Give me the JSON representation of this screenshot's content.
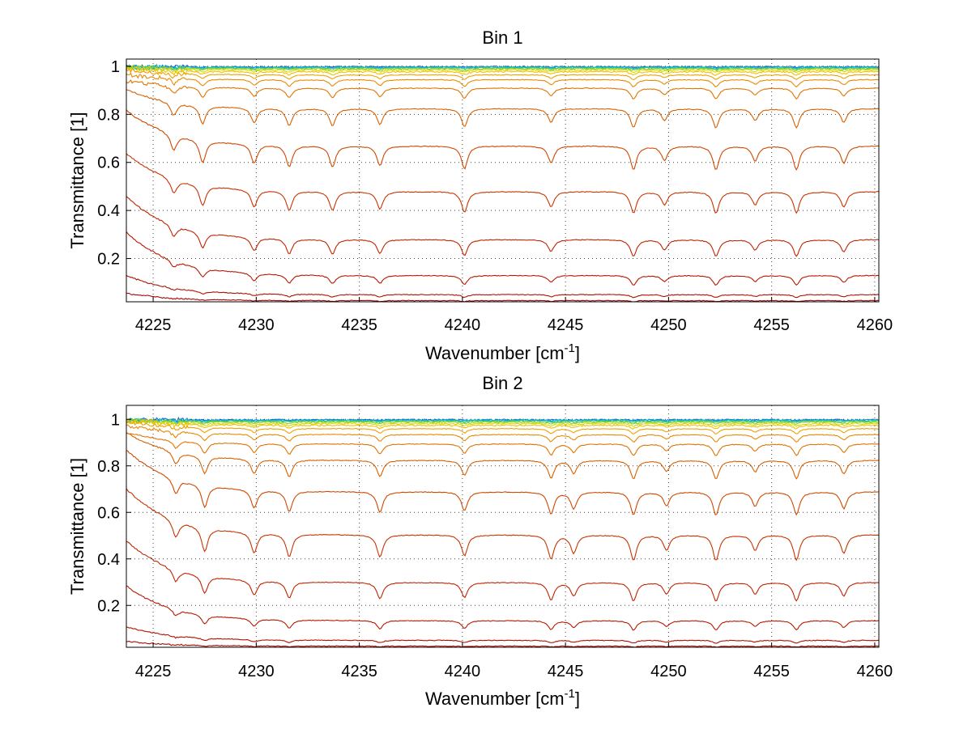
{
  "chart_data": [
    {
      "type": "line",
      "title": "Bin 1",
      "xlabel": "Wavenumber [cm",
      "xlabel_sup": "-1",
      "xlabel_tail": "]",
      "ylabel": "Transmittance [1]",
      "xlim": [
        4223.7,
        4260.2
      ],
      "ylim": [
        0.02,
        1.03
      ],
      "xticks": [
        4225,
        4230,
        4235,
        4240,
        4245,
        4250,
        4255,
        4260
      ],
      "xtick_labels": [
        "4225",
        "4230",
        "4235",
        "4240",
        "4245",
        "4250",
        "4255",
        "4260"
      ],
      "yticks": [
        0.2,
        0.4,
        0.6,
        0.8,
        1.0
      ],
      "ytick_labels": [
        "0.2",
        "0.4",
        "0.6",
        "0.8",
        "1"
      ],
      "grid": true,
      "absorption_lines": [
        4226.0,
        4227.4,
        4229.9,
        4231.6,
        4233.7,
        4236.0,
        4240.1,
        4244.3,
        4248.3,
        4249.8,
        4252.3,
        4254.2,
        4256.2,
        4258.5
      ],
      "series": [
        {
          "color": "#1f5fd6",
          "baseline": 0.998,
          "edge_boost": 0.0,
          "depth": 0.002
        },
        {
          "color": "#00a0e0",
          "baseline": 0.997,
          "edge_boost": 0.0,
          "depth": 0.003
        },
        {
          "color": "#10c0c0",
          "baseline": 0.995,
          "edge_boost": 0.0,
          "depth": 0.004
        },
        {
          "color": "#40c870",
          "baseline": 0.993,
          "edge_boost": 0.0,
          "depth": 0.005
        },
        {
          "color": "#90d020",
          "baseline": 0.99,
          "edge_boost": 0.01,
          "depth": 0.007
        },
        {
          "color": "#d8d800",
          "baseline": 0.985,
          "edge_boost": 0.01,
          "depth": 0.01
        },
        {
          "color": "#f0c000",
          "baseline": 0.978,
          "edge_boost": 0.01,
          "depth": 0.014
        },
        {
          "color": "#f0a000",
          "baseline": 0.965,
          "edge_boost": 0.02,
          "depth": 0.02
        },
        {
          "color": "#e88a00",
          "baseline": 0.945,
          "edge_boost": 0.02,
          "depth": 0.03
        },
        {
          "color": "#e07400",
          "baseline": 0.91,
          "edge_boost": 0.03,
          "depth": 0.045
        },
        {
          "color": "#d86000",
          "baseline": 0.825,
          "edge_boost": 0.08,
          "depth": 0.08
        },
        {
          "color": "#d04800",
          "baseline": 0.67,
          "edge_boost": 0.15,
          "depth": 0.1
        },
        {
          "color": "#c83400",
          "baseline": 0.48,
          "edge_boost": 0.16,
          "depth": 0.09
        },
        {
          "color": "#c02400",
          "baseline": 0.28,
          "edge_boost": 0.18,
          "depth": 0.07
        },
        {
          "color": "#b81800",
          "baseline": 0.13,
          "edge_boost": 0.18,
          "depth": 0.04
        },
        {
          "color": "#b01000",
          "baseline": 0.05,
          "edge_boost": 0.08,
          "depth": 0.012
        },
        {
          "color": "#a80800",
          "baseline": 0.025,
          "edge_boost": 0.03,
          "depth": 0.004
        }
      ]
    },
    {
      "type": "line",
      "title": "Bin 2",
      "xlabel": "Wavenumber [cm",
      "xlabel_sup": "-1",
      "xlabel_tail": "]",
      "ylabel": "Transmittance [1]",
      "xlim": [
        4223.7,
        4260.2
      ],
      "ylim": [
        0.02,
        1.06
      ],
      "xticks": [
        4225,
        4230,
        4235,
        4240,
        4245,
        4250,
        4255,
        4260
      ],
      "xtick_labels": [
        "4225",
        "4230",
        "4235",
        "4240",
        "4245",
        "4250",
        "4255",
        "4260"
      ],
      "yticks": [
        0.2,
        0.4,
        0.6,
        0.8,
        1.0
      ],
      "ytick_labels": [
        "0.2",
        "0.4",
        "0.6",
        "0.8",
        "1"
      ],
      "grid": true,
      "absorption_lines": [
        4226.1,
        4227.5,
        4229.9,
        4231.6,
        4236.0,
        4240.1,
        4244.3,
        4245.4,
        4248.3,
        4249.9,
        4252.3,
        4254.2,
        4256.2,
        4258.5
      ],
      "series": [
        {
          "color": "#1f5fd6",
          "baseline": 0.998,
          "edge_boost": 0.0,
          "depth": 0.002
        },
        {
          "color": "#00a0e0",
          "baseline": 0.997,
          "edge_boost": 0.0,
          "depth": 0.003
        },
        {
          "color": "#10c0c0",
          "baseline": 0.995,
          "edge_boost": 0.0,
          "depth": 0.004
        },
        {
          "color": "#40c870",
          "baseline": 0.992,
          "edge_boost": 0.0,
          "depth": 0.005
        },
        {
          "color": "#90d020",
          "baseline": 0.988,
          "edge_boost": 0.01,
          "depth": 0.008
        },
        {
          "color": "#d8d800",
          "baseline": 0.982,
          "edge_boost": 0.01,
          "depth": 0.011
        },
        {
          "color": "#f0c000",
          "baseline": 0.975,
          "edge_boost": 0.02,
          "depth": 0.015
        },
        {
          "color": "#f0a000",
          "baseline": 0.96,
          "edge_boost": 0.03,
          "depth": 0.022
        },
        {
          "color": "#e88a00",
          "baseline": 0.935,
          "edge_boost": 0.04,
          "depth": 0.032
        },
        {
          "color": "#e07400",
          "baseline": 0.895,
          "edge_boost": 0.05,
          "depth": 0.05
        },
        {
          "color": "#d86000",
          "baseline": 0.825,
          "edge_boost": 0.12,
          "depth": 0.08
        },
        {
          "color": "#d04800",
          "baseline": 0.69,
          "edge_boost": 0.18,
          "depth": 0.1
        },
        {
          "color": "#c83400",
          "baseline": 0.505,
          "edge_boost": 0.2,
          "depth": 0.11
        },
        {
          "color": "#c02400",
          "baseline": 0.3,
          "edge_boost": 0.18,
          "depth": 0.08
        },
        {
          "color": "#b81800",
          "baseline": 0.135,
          "edge_boost": 0.15,
          "depth": 0.04
        },
        {
          "color": "#b01000",
          "baseline": 0.05,
          "edge_boost": 0.06,
          "depth": 0.012
        },
        {
          "color": "#a80800",
          "baseline": 0.025,
          "edge_boost": 0.02,
          "depth": 0.004
        }
      ]
    }
  ]
}
